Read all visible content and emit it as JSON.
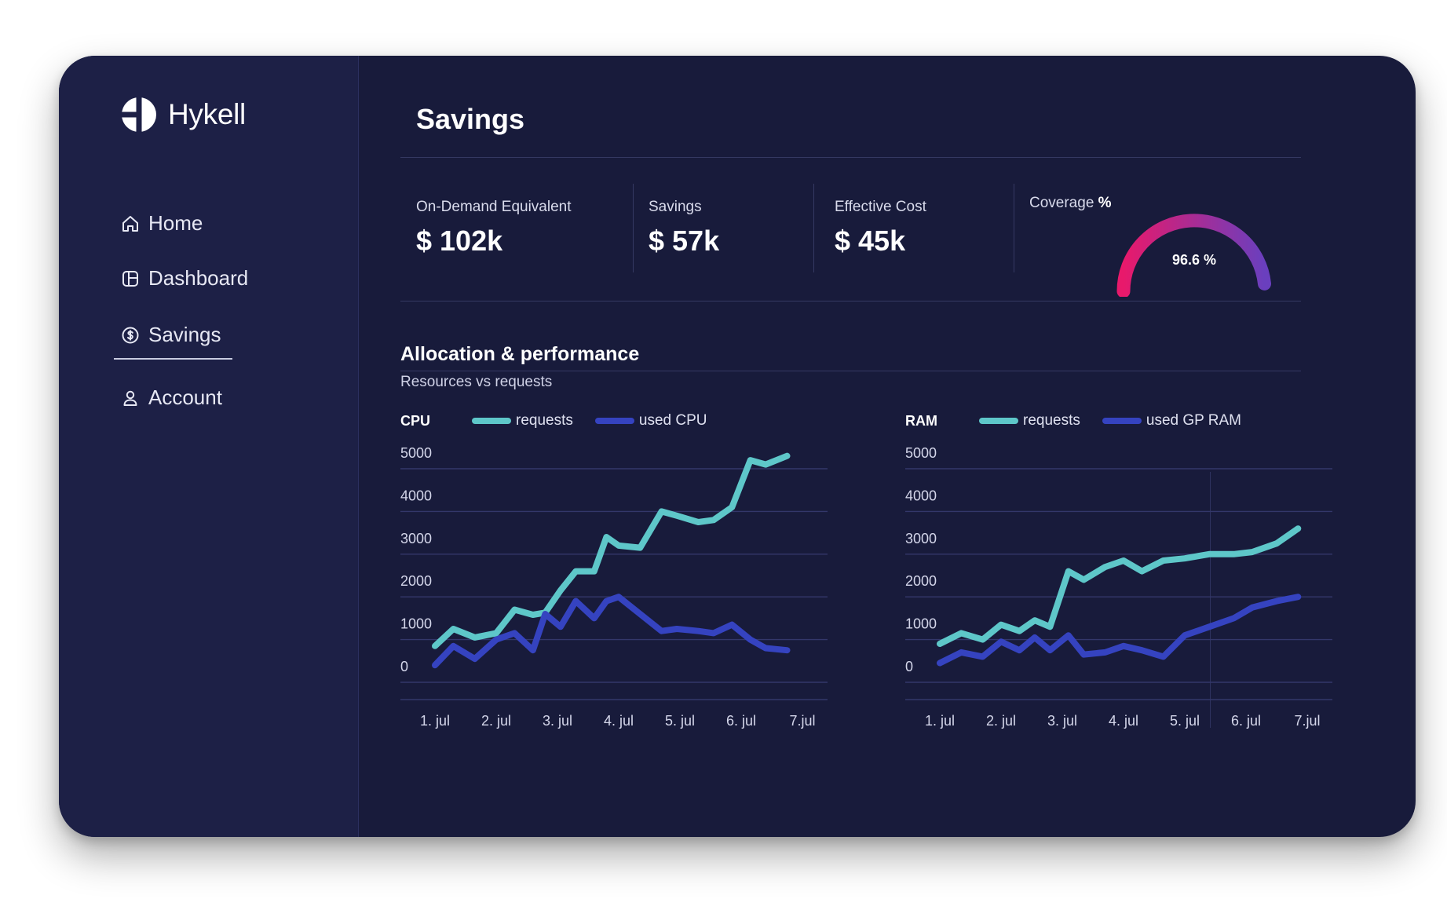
{
  "app": {
    "brand": "Hykell"
  },
  "sidebar": {
    "items": [
      {
        "label": "Home",
        "icon": "home-icon",
        "active": false
      },
      {
        "label": "Dashboard",
        "icon": "dashboard-icon",
        "active": false
      },
      {
        "label": "Savings",
        "icon": "dollar-circle-icon",
        "active": true
      },
      {
        "label": "Account",
        "icon": "user-icon",
        "active": false
      }
    ]
  },
  "main": {
    "title": "Savings",
    "stats": [
      {
        "label": "On-Demand Equivalent",
        "value": "$ 102k"
      },
      {
        "label": "Savings",
        "value": "$ 57k"
      },
      {
        "label": "Effective Cost",
        "value": "$ 45k"
      }
    ],
    "coverage": {
      "label": "Coverage",
      "label_unit": "%",
      "value_text": "96.6 %",
      "value": 96.6
    },
    "section": {
      "title": "Allocation & performance",
      "subtitle": "Resources vs requests"
    }
  },
  "colors": {
    "background": "#181b3b",
    "sidebar": "#1d2046",
    "requests": "#5ec7c9",
    "used": "#3543c0",
    "gauge_start": "#e8196b",
    "gauge_end": "#6a3fbe"
  },
  "chart_data": [
    {
      "type": "line",
      "title": "CPU",
      "categories": [
        "1. jul",
        "2. jul",
        "3. jul",
        "4. jul",
        "5. jul",
        "6. jul",
        "7.jul"
      ],
      "x": [
        0,
        0.3,
        0.65,
        1,
        1.3,
        1.6,
        1.8,
        2.05,
        2.3,
        2.6,
        2.8,
        3,
        3.35,
        3.7,
        3.95,
        4.3,
        4.55,
        4.85,
        5.15,
        5.4,
        5.75
      ],
      "series": [
        {
          "name": "requests",
          "values": [
            850,
            1250,
            1050,
            1150,
            1700,
            1580,
            1630,
            2150,
            2600,
            2600,
            3400,
            3200,
            3150,
            4000,
            3900,
            3750,
            3800,
            4100,
            5200,
            5100,
            5300
          ]
        },
        {
          "name": "used CPU",
          "values": [
            400,
            850,
            550,
            1000,
            1150,
            750,
            1600,
            1300,
            1900,
            1500,
            1900,
            2000,
            1600,
            1200,
            1250,
            1200,
            1150,
            1350,
            1000,
            800,
            750
          ]
        }
      ],
      "ylim": [
        0,
        5000
      ],
      "yticks": [
        0,
        1000,
        2000,
        3000,
        4000,
        5000
      ],
      "grid": true,
      "legend_position": "top"
    },
    {
      "type": "line",
      "title": "RAM",
      "categories": [
        "1. jul",
        "2. jul",
        "3. jul",
        "4. jul",
        "5. jul",
        "6. jul",
        "7.jul"
      ],
      "x": [
        0,
        0.35,
        0.7,
        1,
        1.3,
        1.55,
        1.8,
        2.1,
        2.35,
        2.7,
        3,
        3.3,
        3.65,
        4,
        4.4,
        4.8,
        5.1,
        5.5,
        5.85
      ],
      "series": [
        {
          "name": "requests",
          "values": [
            900,
            1150,
            1000,
            1350,
            1200,
            1450,
            1300,
            2600,
            2400,
            2700,
            2850,
            2600,
            2850,
            2900,
            3000,
            3000,
            3050,
            3250,
            3600
          ]
        },
        {
          "name": "used GP RAM",
          "values": [
            450,
            700,
            600,
            950,
            750,
            1050,
            750,
            1100,
            650,
            700,
            850,
            750,
            600,
            1100,
            1300,
            1500,
            1750,
            1900,
            2000
          ]
        }
      ],
      "ylim": [
        0,
        5000
      ],
      "yticks": [
        0,
        1000,
        2000,
        3000,
        4000,
        5000
      ],
      "grid": true,
      "legend_position": "top"
    }
  ]
}
